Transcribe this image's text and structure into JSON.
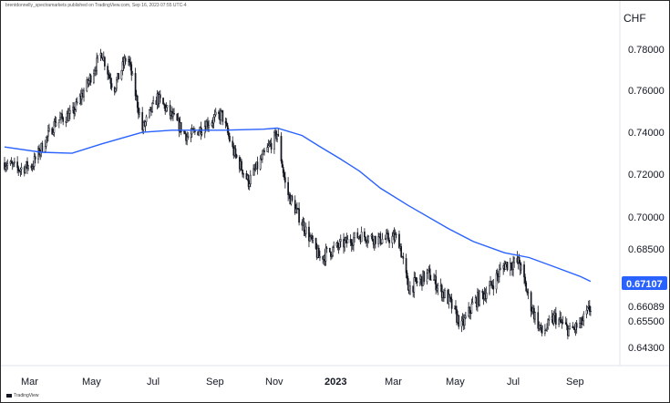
{
  "attribution": "brentdonnelly_spectramarkets published on TradingView.com, Sep 16, 2023 07:55 UTC-4",
  "watermark": "TradingView",
  "colors": {
    "candle": "#131722",
    "moving_average": "#2962ff",
    "last_price_bg": "#2962ff",
    "background": "#ffffff"
  },
  "chart_data": {
    "type": "candlestick",
    "currency_label": "CHF",
    "y_ticks": [
      "0.78000",
      "0.76000",
      "0.74000",
      "0.72000",
      "0.70000",
      "0.68500",
      "0.66089",
      "0.65500",
      "0.64300"
    ],
    "last_price_label": "0.67107",
    "x_ticks": [
      {
        "label": "Mar",
        "bold": false
      },
      {
        "label": "May",
        "bold": false
      },
      {
        "label": "Jul",
        "bold": false
      },
      {
        "label": "Sep",
        "bold": false
      },
      {
        "label": "Nov",
        "bold": false
      },
      {
        "label": "2023",
        "bold": true
      },
      {
        "label": "Mar",
        "bold": false
      },
      {
        "label": "May",
        "bold": false
      },
      {
        "label": "Jul",
        "bold": false
      },
      {
        "label": "Sep",
        "bold": false
      }
    ],
    "price_path": [
      [
        "2022-02-01",
        0.725
      ],
      [
        "2022-02-15",
        0.722
      ],
      [
        "2022-03-01",
        0.724
      ],
      [
        "2022-03-10",
        0.732
      ],
      [
        "2022-03-25",
        0.745
      ],
      [
        "2022-04-10",
        0.748
      ],
      [
        "2022-04-25",
        0.762
      ],
      [
        "2022-05-10",
        0.778
      ],
      [
        "2022-05-22",
        0.76
      ],
      [
        "2022-06-05",
        0.777
      ],
      [
        "2022-06-20",
        0.741
      ],
      [
        "2022-07-05",
        0.756
      ],
      [
        "2022-07-20",
        0.747
      ],
      [
        "2022-08-05",
        0.737
      ],
      [
        "2022-08-25",
        0.744
      ],
      [
        "2022-09-08",
        0.748
      ],
      [
        "2022-09-20",
        0.73
      ],
      [
        "2022-10-05",
        0.716
      ],
      [
        "2022-10-20",
        0.728
      ],
      [
        "2022-11-03",
        0.739
      ],
      [
        "2022-11-12",
        0.712
      ],
      [
        "2022-11-28",
        0.697
      ],
      [
        "2022-12-15",
        0.681
      ],
      [
        "2023-01-05",
        0.686
      ],
      [
        "2023-01-25",
        0.691
      ],
      [
        "2023-02-15",
        0.689
      ],
      [
        "2023-03-05",
        0.69
      ],
      [
        "2023-03-15",
        0.668
      ],
      [
        "2023-04-05",
        0.674
      ],
      [
        "2023-04-25",
        0.663
      ],
      [
        "2023-05-08",
        0.652
      ],
      [
        "2023-05-20",
        0.662
      ],
      [
        "2023-06-05",
        0.668
      ],
      [
        "2023-06-20",
        0.678
      ],
      [
        "2023-07-05",
        0.679
      ],
      [
        "2023-07-15",
        0.663
      ],
      [
        "2023-07-28",
        0.649
      ],
      [
        "2023-08-10",
        0.656
      ],
      [
        "2023-08-25",
        0.65
      ],
      [
        "2023-09-05",
        0.653
      ],
      [
        "2023-09-15",
        0.66
      ]
    ],
    "moving_average": [
      [
        "2022-02-01",
        0.7325
      ],
      [
        "2022-03-10",
        0.73
      ],
      [
        "2022-04-10",
        0.7295
      ],
      [
        "2022-05-10",
        0.734
      ],
      [
        "2022-06-20",
        0.7395
      ],
      [
        "2022-07-20",
        0.7405
      ],
      [
        "2022-09-08",
        0.7405
      ],
      [
        "2022-10-20",
        0.741
      ],
      [
        "2022-11-03",
        0.7415
      ],
      [
        "2022-11-28",
        0.738
      ],
      [
        "2022-12-15",
        0.733
      ],
      [
        "2023-01-05",
        0.727
      ],
      [
        "2023-01-25",
        0.721
      ],
      [
        "2023-02-15",
        0.713
      ],
      [
        "2023-03-15",
        0.705
      ],
      [
        "2023-04-25",
        0.694
      ],
      [
        "2023-05-20",
        0.688
      ],
      [
        "2023-06-20",
        0.683
      ],
      [
        "2023-07-15",
        0.681
      ],
      [
        "2023-08-10",
        0.677
      ],
      [
        "2023-09-05",
        0.673
      ],
      [
        "2023-09-15",
        0.671
      ]
    ],
    "grid": false,
    "legend": "none"
  }
}
